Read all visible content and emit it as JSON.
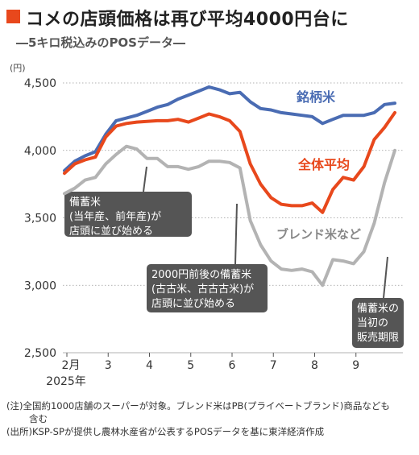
{
  "header": {
    "title": "コメの店頭価格は再び平均4000円台に",
    "subtitle": "―5キロ税込みのPOSデータ―"
  },
  "colors": {
    "accent": "#e8481c",
    "brand_rice": "#4a6cb3",
    "average": "#e8481c",
    "blend": "#b3b3b3",
    "callout_bg": "#555555"
  },
  "chart_data": {
    "type": "line",
    "title": "",
    "xlabel": "",
    "ylabel": "(円)",
    "ylim": [
      2500,
      4500
    ],
    "yticks": [
      2500,
      3000,
      3500,
      4000,
      4500
    ],
    "ytick_labels": [
      "2,500",
      "3,000",
      "3,500",
      "4,000",
      "4,500"
    ],
    "xtick_labels": [
      "2月",
      "3",
      "4",
      "5",
      "6",
      "7",
      "8",
      "9"
    ],
    "xtick_weeks": [
      0,
      4,
      8,
      12,
      16,
      20,
      24,
      28
    ],
    "year_label": "2025年",
    "grid": true,
    "series": [
      {
        "name": "銘柄米",
        "label_color": "#4a6cb3",
        "values": [
          3850,
          3920,
          3960,
          3990,
          4120,
          4220,
          4240,
          4260,
          4290,
          4320,
          4340,
          4380,
          4410,
          4440,
          4470,
          4450,
          4420,
          4430,
          4360,
          4310,
          4300,
          4280,
          4270,
          4260,
          4250,
          4200,
          4230,
          4260,
          4260,
          4260,
          4280,
          4340,
          4350
        ]
      },
      {
        "name": "全体平均",
        "label_color": "#e8481c",
        "values": [
          3830,
          3900,
          3930,
          3950,
          4100,
          4180,
          4200,
          4210,
          4215,
          4220,
          4220,
          4230,
          4210,
          4240,
          4270,
          4250,
          4220,
          4140,
          3900,
          3750,
          3650,
          3600,
          3590,
          3590,
          3610,
          3540,
          3710,
          3800,
          3780,
          3880,
          4080,
          4170,
          4280
        ]
      },
      {
        "name": "ブレンド米など",
        "label_color": "#888888",
        "values": [
          3680,
          3720,
          3780,
          3800,
          3900,
          3970,
          4030,
          4010,
          3940,
          3940,
          3880,
          3880,
          3860,
          3880,
          3920,
          3920,
          3910,
          3870,
          3480,
          3300,
          3180,
          3120,
          3110,
          3120,
          3100,
          3000,
          3190,
          3180,
          3160,
          3250,
          3460,
          3760,
          4000
        ]
      }
    ],
    "annotations": [
      {
        "name": "stockpile-1",
        "lines": [
          "備蓄米",
          "(当年産、前年産)が",
          "店頭に並び始める"
        ]
      },
      {
        "name": "stockpile-2",
        "lines": [
          "2000円前後の備蓄米",
          "(古古米、古古古米)が",
          "店頭に並び始める"
        ]
      },
      {
        "name": "stockpile-3",
        "lines": [
          "備蓄米の",
          "当初の",
          "販売期限"
        ]
      }
    ]
  },
  "notes": {
    "line1": "(注)全国約1000店舗のスーパーが対象。ブレンド米はPB(プライベートブランド)商品なども",
    "line1b": "含む",
    "line2": "(出所)KSP-SPが提供し農林水産省が公表するPOSデータを基に東洋経済作成"
  }
}
